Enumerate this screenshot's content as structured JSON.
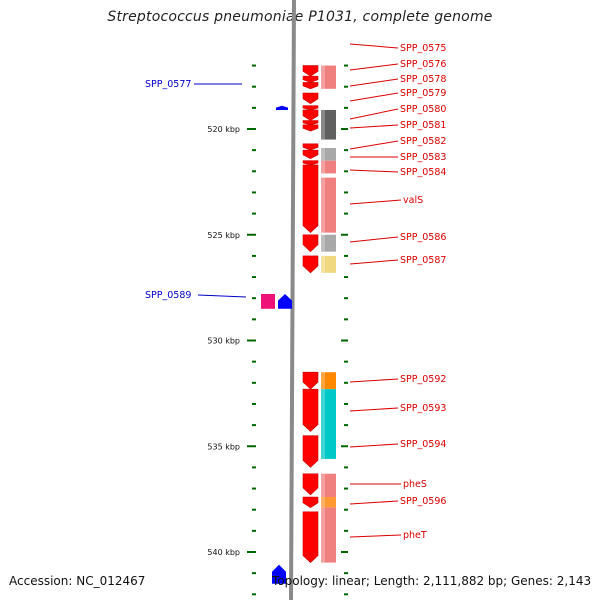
{
  "title": "Streptococcus pneumoniae P1031, complete genome",
  "footer": {
    "accession": "Accession: NC_012467",
    "topology": "Topology: linear; Length: 2,111,882 bp; Genes: 2,143"
  },
  "colors": {
    "forward_gene": "#ff0000",
    "reverse_gene": "#0000ff",
    "label_right": "#dd0000",
    "label_left": "#0000cc",
    "scale_tick": "#006600",
    "backbone": "#8a8a8a"
  },
  "scale": {
    "unit": "kbp",
    "start_kbp": 517,
    "end_kbp": 542.5,
    "labels": [
      {
        "kbp": 520,
        "text": "520 kbp"
      },
      {
        "kbp": 525,
        "text": "525 kbp"
      },
      {
        "kbp": 530,
        "text": "530 kbp"
      },
      {
        "kbp": 535,
        "text": "535 kbp"
      },
      {
        "kbp": 540,
        "text": "540 kbp"
      }
    ]
  },
  "right_labels": [
    {
      "text": "SPP_0575"
    },
    {
      "text": "SPP_0576"
    },
    {
      "text": "SPP_0578"
    },
    {
      "text": "SPP_0579"
    },
    {
      "text": "SPP_0580"
    },
    {
      "text": "SPP_0581"
    },
    {
      "text": "SPP_0582"
    },
    {
      "text": "SPP_0583"
    },
    {
      "text": "SPP_0584"
    },
    {
      "text": "valS"
    },
    {
      "text": "SPP_0586"
    },
    {
      "text": "SPP_0587"
    },
    {
      "text": "SPP_0592"
    },
    {
      "text": "SPP_0593"
    },
    {
      "text": "SPP_0594"
    },
    {
      "text": "pheS"
    },
    {
      "text": "SPP_0596"
    },
    {
      "text": "pheT"
    }
  ],
  "left_labels": [
    {
      "text": "SPP_0577"
    },
    {
      "text": "SPP_0589"
    }
  ],
  "forward_genes": [
    {
      "start_kbp": 517.0,
      "end_kbp": 517.5
    },
    {
      "start_kbp": 517.5,
      "end_kbp": 517.8
    },
    {
      "start_kbp": 517.8,
      "end_kbp": 518.1
    },
    {
      "start_kbp": 518.3,
      "end_kbp": 518.8
    },
    {
      "start_kbp": 518.9,
      "end_kbp": 519.1
    },
    {
      "start_kbp": 519.1,
      "end_kbp": 519.6
    },
    {
      "start_kbp": 519.6,
      "end_kbp": 519.8
    },
    {
      "start_kbp": 519.8,
      "end_kbp": 520.1
    },
    {
      "start_kbp": 520.7,
      "end_kbp": 521.0
    },
    {
      "start_kbp": 521.0,
      "end_kbp": 521.4
    },
    {
      "start_kbp": 521.5,
      "end_kbp": 521.7
    },
    {
      "start_kbp": 521.7,
      "end_kbp": 524.9
    },
    {
      "start_kbp": 525.0,
      "end_kbp": 525.8
    },
    {
      "start_kbp": 526.0,
      "end_kbp": 526.8
    },
    {
      "start_kbp": 531.5,
      "end_kbp": 532.3
    },
    {
      "start_kbp": 532.3,
      "end_kbp": 534.3
    },
    {
      "start_kbp": 534.5,
      "end_kbp": 536.0
    },
    {
      "start_kbp": 536.3,
      "end_kbp": 537.3
    },
    {
      "start_kbp": 537.4,
      "end_kbp": 537.9
    },
    {
      "start_kbp": 538.1,
      "end_kbp": 540.5
    }
  ],
  "protein_blocks": [
    {
      "start_kbp": 517.0,
      "end_kbp": 518.1,
      "color": "#f08080"
    },
    {
      "start_kbp": 519.1,
      "end_kbp": 520.5,
      "color": "#606060"
    },
    {
      "start_kbp": 520.9,
      "end_kbp": 521.5,
      "color": "#a8a8a8"
    },
    {
      "start_kbp": 521.5,
      "end_kbp": 522.1,
      "color": "#f08080"
    },
    {
      "start_kbp": 522.3,
      "end_kbp": 524.9,
      "color": "#f08080"
    },
    {
      "start_kbp": 525.0,
      "end_kbp": 525.8,
      "color": "#a8a8a8"
    },
    {
      "start_kbp": 526.0,
      "end_kbp": 526.8,
      "color": "#f0d880"
    },
    {
      "start_kbp": 531.5,
      "end_kbp": 532.3,
      "color": "#ff8800"
    },
    {
      "start_kbp": 532.3,
      "end_kbp": 535.6,
      "color": "#00c8c8"
    },
    {
      "start_kbp": 536.3,
      "end_kbp": 537.4,
      "color": "#f08080"
    },
    {
      "start_kbp": 537.4,
      "end_kbp": 537.9,
      "color": "#ff9933"
    },
    {
      "start_kbp": 537.9,
      "end_kbp": 540.5,
      "color": "#f08080"
    }
  ],
  "reverse_genes": [
    {
      "start_kbp": 518.9,
      "end_kbp": 519.1,
      "color": "#0000ff"
    },
    {
      "start_kbp": 527.8,
      "end_kbp": 528.5,
      "color": "#0000ff"
    },
    {
      "start_kbp": 527.8,
      "end_kbp": 528.5,
      "color": "#ee1177"
    },
    {
      "start_kbp": 540.6,
      "end_kbp": 541.5,
      "color": "#0000ff"
    }
  ]
}
